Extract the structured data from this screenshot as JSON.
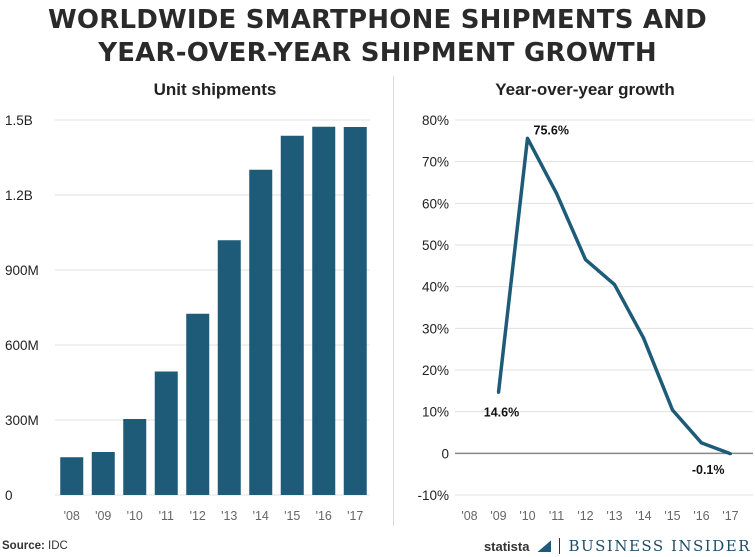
{
  "title": "WORLDWIDE SMARTPHONE SHIPMENTS AND YEAR-OVER-YEAR SHIPMENT GROWTH",
  "title_lines": [
    "WORLDWIDE SMARTPHONE SHIPMENTS AND",
    "YEAR-OVER-YEAR SHIPMENT GROWTH"
  ],
  "footer": {
    "source_label": "Source:",
    "source_value": "IDC",
    "statista": "statista",
    "brand": "BUSINESS INSIDER"
  },
  "colors": {
    "bar": "#1d5b79",
    "line": "#1d5b79",
    "grid": "#e0e0e0",
    "zero_line": "#888888"
  },
  "chart_data": [
    {
      "type": "bar",
      "title": "Unit shipments",
      "categories": [
        "'08",
        "'09",
        "'10",
        "'11",
        "'12",
        "'13",
        "'14",
        "'15",
        "'16",
        "'17"
      ],
      "values": [
        151,
        172,
        304,
        494,
        725,
        1019,
        1301,
        1437,
        1473,
        1472
      ],
      "unit": "millions",
      "yticks": [
        "0",
        "300M",
        "600M",
        "900M",
        "1.2B",
        "1.5B"
      ],
      "ytick_values": [
        0,
        300,
        600,
        900,
        1200,
        1500
      ],
      "ylim": [
        0,
        1500
      ],
      "grid": true
    },
    {
      "type": "line",
      "title": "Year-over-year growth",
      "categories": [
        "'08",
        "'09",
        "'10",
        "'11",
        "'12",
        "'13",
        "'14",
        "'15",
        "'16",
        "'17"
      ],
      "values": [
        null,
        14.6,
        75.6,
        62.4,
        46.5,
        40.5,
        27.7,
        10.4,
        2.5,
        -0.1
      ],
      "yticks": [
        "-10%",
        "0",
        "10%",
        "20%",
        "30%",
        "40%",
        "50%",
        "60%",
        "70%",
        "80%"
      ],
      "ytick_values": [
        -10,
        0,
        10,
        20,
        30,
        40,
        50,
        60,
        70,
        80
      ],
      "ylim": [
        -10,
        80
      ],
      "annotations": [
        {
          "category": "'09",
          "text": "14.6%"
        },
        {
          "category": "'10",
          "text": "75.6%"
        },
        {
          "category": "'17",
          "text": "-0.1%"
        }
      ],
      "grid": true
    }
  ]
}
